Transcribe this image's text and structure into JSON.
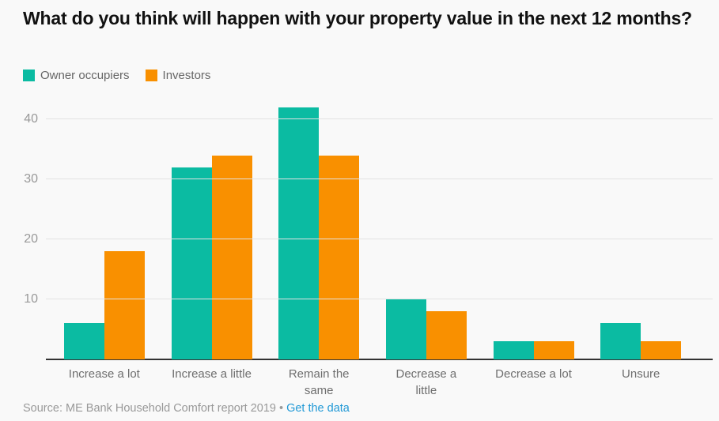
{
  "title": "What do you think will happen with your property value in the next 12 months?",
  "legend": [
    {
      "label": "Owner occupiers",
      "color": "#0bbba2"
    },
    {
      "label": "Investors",
      "color": "#f99000"
    }
  ],
  "source": {
    "text": "Source: ME Bank Household Comfort report 2019",
    "separator": "•",
    "link_label": "Get the data",
    "link_color": "#2199d6"
  },
  "colors": {
    "background": "#f9f9f9",
    "owner_occupiers": "#0bbba2",
    "investors": "#f99000",
    "gridline": "#e2e2e2",
    "axis_line": "#333333"
  },
  "chart_data": {
    "type": "bar",
    "title": "What do you think will happen with your property value in the next 12 months?",
    "categories": [
      "Increase a lot",
      "Increase a little",
      "Remain the same",
      "Decrease a little",
      "Decrease a lot",
      "Unsure"
    ],
    "category_display": [
      "Increase a lot",
      "Increase a little",
      "Remain the\nsame",
      "Decrease a\nlittle",
      "Decrease a lot",
      "Unsure"
    ],
    "series": [
      {
        "name": "Owner occupiers",
        "color": "#0bbba2",
        "values": [
          6,
          32,
          42,
          10,
          3,
          6
        ]
      },
      {
        "name": "Investors",
        "color": "#f99000",
        "values": [
          18,
          34,
          34,
          8,
          3,
          3
        ]
      }
    ],
    "xlabel": "",
    "ylabel": "",
    "ylim": [
      0,
      45
    ],
    "yticks": [
      10,
      20,
      30,
      40
    ],
    "grid": "horizontal",
    "legend_position": "top-left"
  }
}
